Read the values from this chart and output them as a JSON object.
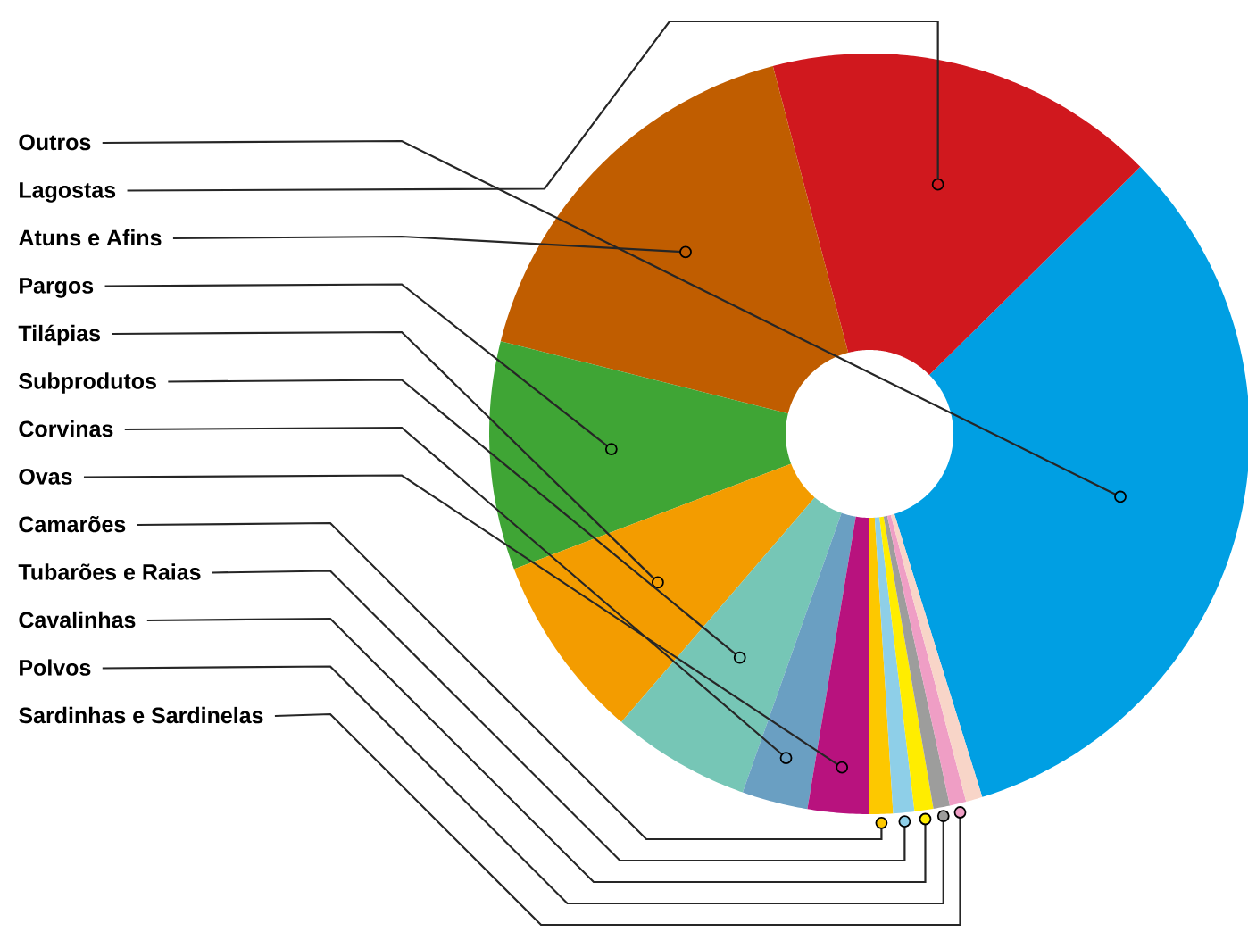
{
  "chart_data": {
    "type": "donut",
    "categories": [
      "Outros",
      "Lagostas",
      "Atuns e Afins",
      "Pargos",
      "Tilápias",
      "Subprodutos",
      "Corvinas",
      "Ovas",
      "Camarões",
      "Tubarões e Raias",
      "Cavalinhas",
      "Polvos",
      "Sardinhas e Sardinelas",
      null
    ],
    "values": [
      32.6,
      16.7,
      17.0,
      9.7,
      7.9,
      5.9,
      2.8,
      2.6,
      1.0,
      0.9,
      0.8,
      0.7,
      0.7,
      0.7
    ],
    "colors": [
      "#009fe3",
      "#d0181e",
      "#c05d00",
      "#3fa535",
      "#f39c00",
      "#76c6b6",
      "#6a9fc2",
      "#b8127e",
      "#fdc800",
      "#8ecfe8",
      "#ffed00",
      "#9d9d9c",
      "#ef9ec5",
      "#f8d5c8"
    ]
  }
}
